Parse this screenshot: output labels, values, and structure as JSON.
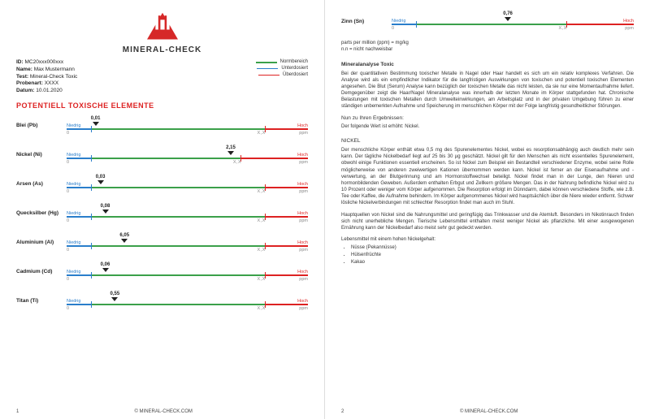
{
  "brand": "MINERAL-CHECK",
  "colors": {
    "normal": "#3ba04a",
    "under": "#2a7ecb",
    "over": "#d22",
    "text": "#333333"
  },
  "meta": {
    "id_label": "ID:",
    "id": "MC20xxx000xxx",
    "name_label": "Name:",
    "name": "Max Mustermann",
    "test_label": "Test:",
    "test": "Mineral-Check Toxic",
    "sample_label": "Probenart:",
    "sample": "XXXX",
    "date_label": "Datum:",
    "date": "10.01.2020"
  },
  "legend": {
    "normal": "Normbereich",
    "under": "Unterdosiert",
    "over": "Überdosiert"
  },
  "section_title": "POTENTIELL TOXISCHE ELEMENTE",
  "gauge_labels": {
    "low": "Niedrig",
    "high": "Hoch",
    "zero": "0",
    "xx": "X,X",
    "unit": "ppm"
  },
  "elements_p1": [
    {
      "name": "Blei (Pb)",
      "value": "0,01",
      "pos_pct": 12,
      "blue_w": 10,
      "red_w": 18,
      "tick_b": 10,
      "tick_r": 82
    },
    {
      "name": "Nickel (Ni)",
      "value": "2,15",
      "pos_pct": 68,
      "blue_w": 10,
      "red_w": 28,
      "tick_b": 10,
      "tick_r": 72
    },
    {
      "name": "Arsen (As)",
      "value": "0,03",
      "pos_pct": 14,
      "blue_w": 10,
      "red_w": 18,
      "tick_b": 10,
      "tick_r": 82
    },
    {
      "name": "Quecksilber (Hg)",
      "value": "0,08",
      "pos_pct": 16,
      "blue_w": 10,
      "red_w": 18,
      "tick_b": 10,
      "tick_r": 82
    },
    {
      "name": "Aluminium (Al)",
      "value": "6,05",
      "pos_pct": 24,
      "blue_w": 10,
      "red_w": 18,
      "tick_b": 10,
      "tick_r": 82
    },
    {
      "name": "Cadmium (Cd)",
      "value": "0,06",
      "pos_pct": 16,
      "blue_w": 10,
      "red_w": 18,
      "tick_b": 10,
      "tick_r": 82
    },
    {
      "name": "Titan (Ti)",
      "value": "0,55",
      "pos_pct": 20,
      "blue_w": 10,
      "red_w": 18,
      "tick_b": 10,
      "tick_r": 82
    }
  ],
  "element_p2": {
    "name": "Zinn (Sn)",
    "value": "0,76",
    "pos_pct": 48,
    "blue_w": 10,
    "red_w": 28,
    "tick_b": 10,
    "tick_r": 72
  },
  "notes": {
    "line1": "parts per million (ppm) = mg/kg",
    "line2": "n.n = nicht nachweisbar"
  },
  "analysis": {
    "title": "Mineralanalyse Toxic",
    "para": "Bei der quantitativen Bestimmung toxischer Metalle in Nagel oder Haar handelt es sich um ein relativ komplexes Verfahren. Die Analyse wird als ein empfindlicher Indikator für die langfristigen Auswirkungen von toxischen und potentiell toxischen Elementen angesehen. Die Blut (Serum) Analyse kann bezüglich der toxischen Metalle das nicht leisten, da sie nur eine Momentaufnahme liefert. Demgegenüber zeigt die Haar/Nagel Mineralanalyse was innerhalb der letzten Monate im Körper stattgefunden hat. Chronische Belastungen mit toxischen Metallen durch Umwelteinwirkungen, am Arbeitsplatz und in der privaten Umgebung führen zu einer ständigen unbemerkten Aufnahme und Speicherung im menschlichen Körper mit der Folge langfristig gesundheitlicher Störungen.",
    "results_intro": "Nun zu Ihren Ergebnissen:",
    "results_line": "Der folgende Wert ist erhöht: Nickel.",
    "nickel_title": "NICKEL",
    "nickel_p1": "Der menschliche Körper enthält etwa 0,5 mg des Spurenelementes Nickel, wobei es resorptionsabhängig auch deutlich mehr sein kann. Der tägliche Nickelbedarf liegt auf 25 bis 30 µg geschätzt. Nickel gilt für den Menschen als nicht essentielles Spurenelement, obwohl einige Funktionen essentiell erscheinen. So ist Nickel zum Beispiel ein Bestandteil verschiedener Enzyme, wobei seine Rolle möglicherweise von anderen zweiwertigen Kationen übernommen werden kann. Nickel ist ferner an der Eisenaufnahme und -verwertung, an der Blutgerinnung und am Hormonstoffwechsel beteiligt. Nickel findet man in der Lunge, den Nieren und hormonbildenden Geweben. Außerdem enthalten Erbgut und Zellkern größere Mengen. Das in der Nahrung befindliche Nickel wird zu 10 Prozent oder weniger vom Körper aufgenommen. Die Resorption erfolgt im Dünndarm, dabei können verschiedene Stoffe, wie z.B. Tee oder Kaffee, die Aufnahme behindern. Im Körper aufgenommenes Nickel wird hauptsächlich über die Niere wieder entfernt. Schwer lösliche Nickelverbindungen mit schlechter Resorption findet man auch im Stuhl.",
    "nickel_p2": "Hauptquellen von Nickel sind die Nahrungsmittel und geringfügig das Trinkwasser und die Atemluft. Besonders im Nikotinrauch finden sich nicht unerhebliche Mengen. Tierische Lebensmittel enthalten meist weniger Nickel als pflanzliche. Mit einer ausgewogenen Ernährung kann der Nickelbedarf also meist sehr gut gedeckt werden.",
    "foods_title": "Lebensmittel mit einem hohen Nickelgehalt:",
    "foods": [
      "Nüsse (Pekannüsse)",
      "Hülsenfrüchte",
      "Kakao"
    ]
  },
  "footer": {
    "p1": "1",
    "p2": "2",
    "site": "© MINERAL-CHECK.COM"
  }
}
